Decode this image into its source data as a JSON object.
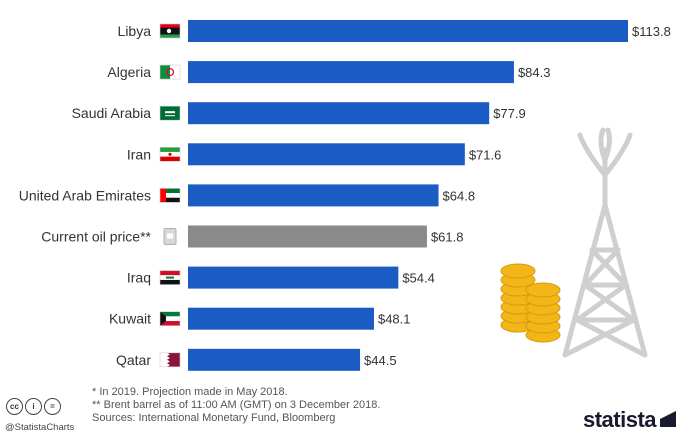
{
  "chart_data": {
    "type": "bar",
    "orientation": "horizontal",
    "categories": [
      "Libya",
      "Algeria",
      "Saudi Arabia",
      "Iran",
      "United Arab Emirates",
      "Current oil price**",
      "Iraq",
      "Kuwait",
      "Qatar"
    ],
    "values": [
      113.8,
      84.3,
      77.9,
      71.6,
      64.8,
      61.8,
      54.4,
      48.1,
      44.5
    ],
    "value_labels": [
      "$113.8",
      "$84.3",
      "$77.9",
      "$71.6",
      "$64.8",
      "$61.8",
      "$54.4",
      "$48.1",
      "$44.5"
    ],
    "highlight_category": "Current oil price**",
    "xlim": [
      0,
      113.8
    ],
    "grid": false,
    "legend": "none"
  },
  "colors": {
    "bar": "#1a5cc4",
    "highlight": "#8a8a8a",
    "coins": "#f2b619",
    "derrick": "#cfcfcf"
  },
  "icons": [
    "flag-icon",
    "flag-icon",
    "flag-icon",
    "flag-icon",
    "flag-icon",
    "oil-barrel-icon",
    "flag-icon",
    "flag-icon",
    "flag-icon"
  ],
  "notes": {
    "note1": "*   In 2019. Projection made in May 2018.",
    "note2": "** Brent barrel as of 11:00 AM (GMT) on 3 December 2018.",
    "sources": "Sources: International Monetary Fund, Bloomberg"
  },
  "footer": {
    "handle": "@StatistaCharts",
    "cc": "cc",
    "by": "i",
    "nd": "=",
    "logo": "statista"
  }
}
